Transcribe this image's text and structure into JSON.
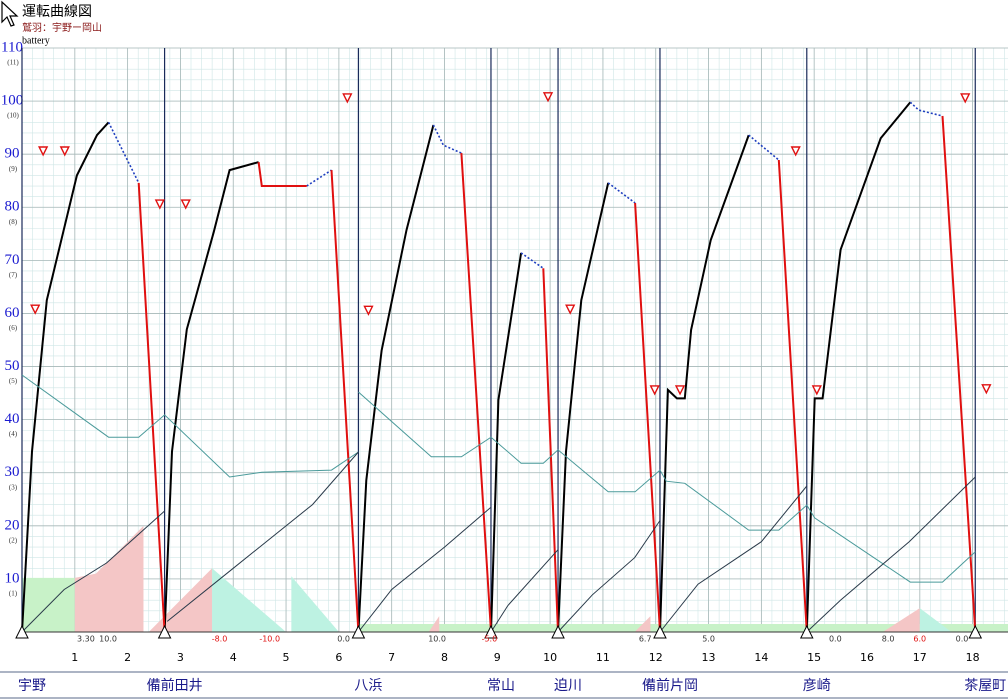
{
  "chart_data": {
    "type": "running-curve",
    "title": "運転曲線図",
    "subtitle": "鷲羽：宇野ー岡山",
    "panel_label": "battery",
    "xlim": [
      0,
      18.67
    ],
    "xticks": [
      1,
      2,
      3,
      4,
      5,
      6,
      7,
      8,
      9,
      10,
      11,
      12,
      13,
      14,
      15,
      16,
      17,
      18
    ],
    "ylim": [
      0,
      110
    ],
    "yticks": [
      10,
      20,
      30,
      40,
      50,
      60,
      70,
      80,
      90,
      100,
      110
    ],
    "y2lim": [
      0,
      11
    ],
    "y2ticks": [
      {
        "value": 1,
        "label": "(1)"
      },
      {
        "value": 2,
        "label": "(2)"
      },
      {
        "value": 3,
        "label": "(3)"
      },
      {
        "value": 4,
        "label": "(4)"
      },
      {
        "value": 5,
        "label": "(5)"
      },
      {
        "value": 6,
        "label": "(6)"
      },
      {
        "value": 7,
        "label": "(7)"
      },
      {
        "value": 8,
        "label": "(8)"
      },
      {
        "value": 9,
        "label": "(9)"
      },
      {
        "value": 10,
        "label": "(10)"
      },
      {
        "value": 11,
        "label": "(11)"
      }
    ],
    "grid": true,
    "stations": {
      "names": [
        "宇野",
        "備前田井",
        "八浜",
        "常山",
        "迫川",
        "備前片岡",
        "彦崎",
        "茶屋町"
      ],
      "x": [
        0,
        2.7,
        6.37,
        8.88,
        10.15,
        12.08,
        14.86,
        18.05
      ],
      "color": "#1a2a5a"
    },
    "areas": [
      {
        "color": "#c8f2c8",
        "x": [
          0,
          1.0,
          1.0,
          0
        ],
        "values": [
          0,
          0,
          10.2,
          10.2
        ]
      },
      {
        "color": "#f4c6c6",
        "x": [
          1.0,
          1.0,
          1.4,
          2.3,
          2.3
        ],
        "values": [
          0,
          10.2,
          11,
          20,
          0
        ]
      },
      {
        "color": "#f4c6c6",
        "x": [
          2.4,
          3.6,
          3.6
        ],
        "values": [
          0,
          12,
          0
        ]
      },
      {
        "color": "#bdf2e2",
        "x": [
          3.6,
          3.6,
          5.0
        ],
        "values": [
          0,
          12,
          0
        ]
      },
      {
        "color": "#bdf2e2",
        "x": [
          5.1,
          5.1,
          6.0
        ],
        "values": [
          0,
          10.5,
          0
        ]
      },
      {
        "color": "#c8f2c8",
        "x": [
          6.4,
          18.67,
          18.67,
          6.4
        ],
        "values": [
          0,
          0,
          1.5,
          1.5
        ]
      },
      {
        "color": "#f4c6c6",
        "x": [
          7.7,
          7.9,
          7.9
        ],
        "values": [
          0,
          3,
          0
        ]
      },
      {
        "color": "#f4c6c6",
        "x": [
          11.6,
          11.9,
          11.9
        ],
        "values": [
          0,
          3,
          0
        ]
      },
      {
        "color": "#f4c6c6",
        "x": [
          16.3,
          17.0,
          17.0
        ],
        "values": [
          0,
          4.5,
          0
        ]
      },
      {
        "color": "#bdf2e2",
        "x": [
          17.0,
          17.0,
          17.6
        ],
        "values": [
          0,
          4.5,
          0
        ]
      }
    ],
    "series": [
      {
        "color": "#000000",
        "width": 2,
        "dashed": false,
        "x": [
          0,
          0.19,
          0.47,
          1.04,
          1.42,
          1.64,
          null,
          2.7,
          2.84,
          3.12,
          3.63,
          3.93,
          4.48,
          null,
          6.37,
          6.52,
          6.81,
          7.28,
          7.79,
          null,
          8.88,
          9.02,
          9.45,
          null,
          10.15,
          10.3,
          10.59,
          11.1,
          null,
          12.08,
          12.23,
          12.4,
          12.55,
          12.67,
          13.04,
          13.76,
          null,
          14.86,
          15.01,
          15.16,
          15.5,
          16.26,
          16.82
        ],
        "values": [
          0,
          34,
          62.5,
          86,
          93.6,
          96,
          null,
          0,
          34,
          57,
          75.3,
          87,
          88.5,
          null,
          0,
          28.6,
          53,
          75.7,
          95.5,
          null,
          0,
          43.7,
          71.4,
          null,
          0,
          34,
          62.5,
          84.6,
          null,
          0,
          45.6,
          44,
          44,
          56.9,
          73.8,
          93.6,
          null,
          0,
          44,
          44,
          72,
          93,
          99.8
        ]
      },
      {
        "color": "#1f3fbf",
        "width": 1.6,
        "dashed": true,
        "x": [
          1.64,
          2.21,
          null,
          5.39,
          5.86,
          null,
          7.79,
          7.98,
          8.32,
          null,
          9.45,
          9.87,
          null,
          11.1,
          11.61,
          null,
          13.76,
          14.33,
          null,
          16.82,
          16.98,
          17.43
        ],
        "values": [
          96,
          84.6,
          null,
          84,
          87,
          null,
          95.5,
          91.7,
          90.2,
          null,
          71.4,
          68.5,
          null,
          84.6,
          80.8,
          null,
          93.6,
          88.9,
          null,
          99.8,
          98.3,
          97.2
        ]
      },
      {
        "color": "#e01010",
        "width": 2,
        "dashed": false,
        "x": [
          2.21,
          2.7,
          null,
          4.48,
          4.54,
          5.39,
          null,
          5.86,
          6.37,
          null,
          8.32,
          8.88,
          null,
          9.87,
          10.15,
          null,
          11.61,
          12.08,
          null,
          14.33,
          14.86,
          null,
          17.43,
          18.05
        ],
        "values": [
          84.6,
          0,
          null,
          88.5,
          84,
          84,
          null,
          87,
          0,
          null,
          90.2,
          0,
          null,
          68.5,
          0,
          null,
          80.8,
          0,
          null,
          88.9,
          0,
          null,
          97.2,
          0
        ]
      },
      {
        "color": "#4a9a9a",
        "width": 1,
        "dashed": false,
        "x": [
          0,
          1.64,
          2.21,
          2.7,
          3.93,
          4.54,
          5.86,
          6.37,
          null,
          6.37,
          7.75,
          8.32,
          8.88,
          9.45,
          9.87,
          10.15,
          11.1,
          11.61,
          12.08,
          12.2,
          12.55,
          13.76,
          14.33,
          14.86,
          15.01,
          16.82,
          17.43,
          18.05
        ],
        "values": [
          48.4,
          36.7,
          36.7,
          40.9,
          29.2,
          30.1,
          30.5,
          33.9,
          null,
          45.2,
          33,
          33,
          36.7,
          31.8,
          31.8,
          34.3,
          26.4,
          26.4,
          30.5,
          28.4,
          28,
          19.2,
          19.2,
          23.9,
          21.5,
          9.4,
          9.4,
          15.1
        ]
      },
      {
        "color": "#2a3a4a",
        "width": 1,
        "dashed": false,
        "x": [
          0,
          0.8,
          1.6,
          2.7,
          null,
          2.75,
          4,
          5.5,
          6.37,
          null,
          6.37,
          7,
          8,
          8.88,
          null,
          8.88,
          9.2,
          10.15,
          null,
          10.15,
          10.8,
          11.6,
          12.08,
          null,
          12.08,
          12.8,
          14,
          14.86,
          null,
          14.86,
          15.5,
          16.8,
          18.05
        ],
        "values": [
          0,
          8,
          13,
          22.8,
          null,
          2,
          12,
          24,
          33.9,
          null,
          0,
          8,
          16,
          23.5,
          null,
          0,
          5,
          15.5,
          null,
          0,
          7,
          14,
          21,
          null,
          0,
          9,
          17,
          27.5,
          null,
          0,
          6,
          17,
          29.2
        ]
      }
    ],
    "limit_markers": {
      "color": "#e01010",
      "x": [
        0.25,
        0.4,
        0.81,
        2.61,
        3.1,
        6.16,
        6.56,
        9.96,
        10.38,
        11.98,
        12.46,
        14.65,
        15.05,
        17.86,
        18.26
      ],
      "values": [
        60.8,
        90.6,
        90.6,
        80.6,
        80.6,
        100.6,
        60.6,
        100.8,
        60.8,
        45.6,
        45.6,
        90.6,
        45.6,
        100.6,
        45.8
      ]
    },
    "grade_labels": {
      "texts": [
        "3.30",
        "10.0",
        "-8.0",
        "-10.0",
        "0.0",
        "10.0",
        "-5.0",
        "6.7",
        "5.0",
        "0.0",
        "8.0",
        "6.0",
        "0.0"
      ],
      "x": [
        1.21,
        1.63,
        3.74,
        4.69,
        6.09,
        7.86,
        8.85,
        11.8,
        13.0,
        15.4,
        16.4,
        17.0,
        17.8
      ],
      "colors": [
        "#333333",
        "#333333",
        "#e01010",
        "#e01010",
        "#333333",
        "#333333",
        "#e01010",
        "#333333",
        "#333333",
        "#333333",
        "#333333",
        "#e01010",
        "#333333"
      ]
    }
  }
}
